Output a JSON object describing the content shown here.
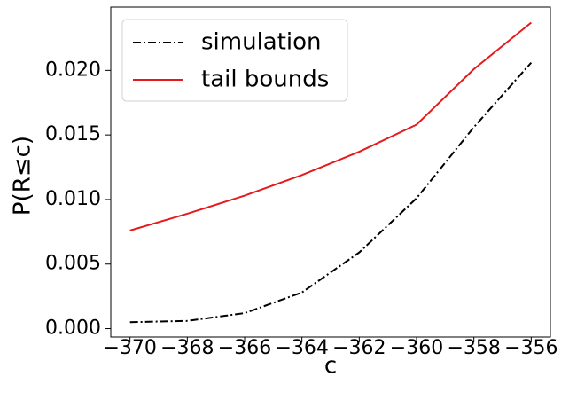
{
  "chart_data": {
    "type": "line",
    "title": "",
    "xlabel": "c",
    "ylabel": "P(R≤c)",
    "x": [
      -370,
      -368,
      -366,
      -364,
      -362,
      -360,
      -358,
      -356
    ],
    "x_tick_labels": [
      "−370",
      "−368",
      "−366",
      "−364",
      "−362",
      "−360",
      "−358",
      "−356"
    ],
    "y_ticks": [
      0.0,
      0.005,
      0.01,
      0.015,
      0.02
    ],
    "y_tick_labels": [
      "0.000",
      "0.005",
      "0.010",
      "0.015",
      "0.020"
    ],
    "xlim": [
      -370.67,
      -355.33
    ],
    "ylim": [
      -0.00065,
      0.0249
    ],
    "grid": false,
    "legend_position": "upper-left",
    "series": [
      {
        "name": "simulation",
        "color": "#000000",
        "style": "dash-dot",
        "values": [
          0.0005,
          0.0006,
          0.0012,
          0.0028,
          0.0059,
          0.0101,
          0.0156,
          0.0206
        ]
      },
      {
        "name": "tail bounds",
        "color": "#e41a1c",
        "style": "solid",
        "values": [
          0.0076,
          0.0089,
          0.0103,
          0.0119,
          0.0137,
          0.0158,
          0.0201,
          0.0237
        ]
      }
    ]
  }
}
